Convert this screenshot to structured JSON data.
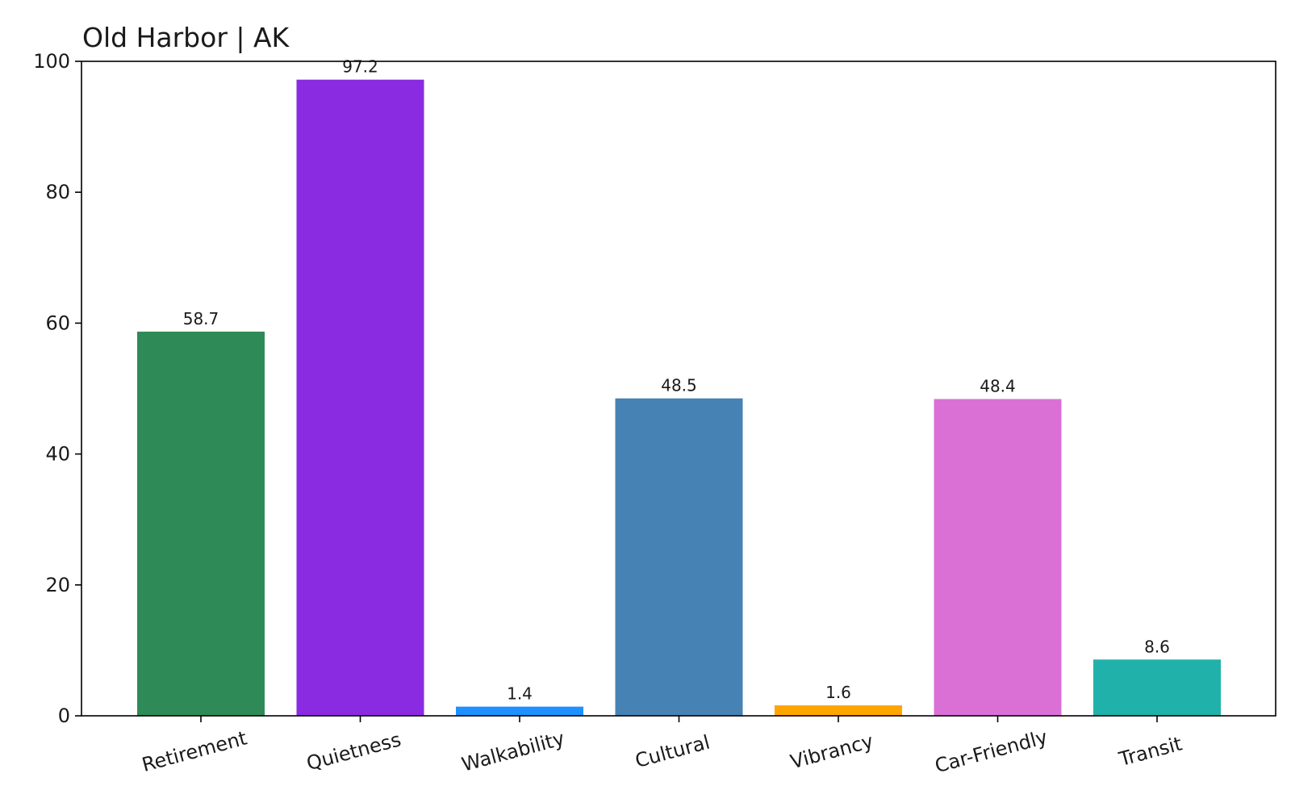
{
  "chart_data": {
    "type": "bar",
    "title": "Old Harbor | AK",
    "xlabel": "",
    "ylabel": "",
    "categories": [
      "Retirement",
      "Quietness",
      "Walkability",
      "Cultural",
      "Vibrancy",
      "Car-Friendly",
      "Transit"
    ],
    "values": [
      58.7,
      97.2,
      1.4,
      48.5,
      1.6,
      48.4,
      8.6
    ],
    "value_labels": [
      "58.7",
      "97.2",
      "1.4",
      "48.5",
      "1.6",
      "48.4",
      "8.6"
    ],
    "colors": [
      "#2e8b57",
      "#8a2be2",
      "#1e90ff",
      "#4682b4",
      "#ffa500",
      "#da70d6",
      "#20b2aa"
    ],
    "ylim": [
      0,
      100
    ],
    "yticks": [
      0,
      20,
      40,
      60,
      80,
      100
    ],
    "ytick_labels": [
      "0",
      "20",
      "40",
      "60",
      "80",
      "100"
    ],
    "grid": false,
    "legend": "none"
  }
}
